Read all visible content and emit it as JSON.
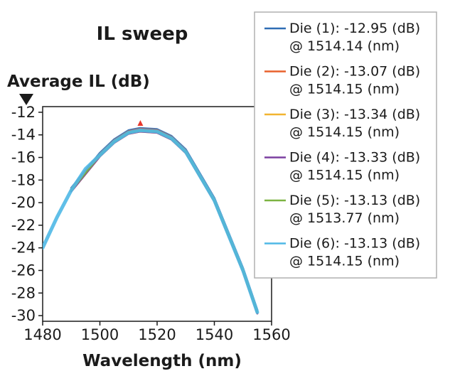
{
  "chart_data": {
    "type": "line",
    "title": "IL sweep",
    "xlabel": "Wavelength (nm)",
    "ylabel": "Average IL (dB)",
    "xlim": [
      1480,
      1560
    ],
    "ylim": [
      -30.5,
      -11.5
    ],
    "x_ticks": [
      1480,
      1500,
      1520,
      1540,
      1560
    ],
    "y_ticks": [
      -12,
      -14,
      -16,
      -18,
      -20,
      -22,
      -24,
      -26,
      -28,
      -30
    ],
    "grid": false,
    "legend_position": "right",
    "series": [
      {
        "name": "Die (1): -12.95 (dB)",
        "name2": "@ 1514.14 (nm)",
        "color": "#2e6db4",
        "x": [
          1490,
          1500,
          1505,
          1510,
          1514,
          1520,
          1525,
          1530,
          1540,
          1550,
          1555
        ],
        "y": [
          -18.7,
          -15.6,
          -14.4,
          -13.6,
          -13.4,
          -13.5,
          -14.1,
          -15.3,
          -19.6,
          -25.8,
          -29.5
        ]
      },
      {
        "name": "Die (2): -13.07 (dB)",
        "name2": "@ 1514.15 (nm)",
        "color": "#e8612c",
        "x": [
          1490,
          1500,
          1505,
          1510,
          1514,
          1520,
          1525,
          1530,
          1540,
          1550,
          1555
        ],
        "y": [
          -18.8,
          -15.7,
          -14.5,
          -13.7,
          -13.5,
          -13.6,
          -14.2,
          -15.4,
          -19.7,
          -25.9,
          -29.6
        ]
      },
      {
        "name": "Die (3): -13.34 (dB)",
        "name2": "@ 1514.15 (nm)",
        "color": "#f2b430",
        "x": [
          1490,
          1500,
          1505,
          1510,
          1514,
          1520,
          1525,
          1530,
          1540,
          1550,
          1555
        ],
        "y": [
          -19.0,
          -15.9,
          -14.7,
          -13.9,
          -13.7,
          -13.8,
          -14.4,
          -15.6,
          -19.9,
          -26.1,
          -29.8
        ]
      },
      {
        "name": "Die (4): -13.33 (dB)",
        "name2": "@ 1514.15 (nm)",
        "color": "#7b3fa0",
        "x": [
          1490,
          1500,
          1505,
          1510,
          1514,
          1520,
          1525,
          1530,
          1540,
          1550,
          1555
        ],
        "y": [
          -19.0,
          -15.9,
          -14.7,
          -13.9,
          -13.7,
          -13.8,
          -14.4,
          -15.6,
          -19.9,
          -26.1,
          -29.8
        ]
      },
      {
        "name": "Die (5): -13.13 (dB)",
        "name2": "@ 1513.77 (nm)",
        "color": "#7cb342",
        "x": [
          1490,
          1500,
          1505,
          1510,
          1514,
          1520,
          1525,
          1530,
          1540,
          1550,
          1555
        ],
        "y": [
          -18.9,
          -15.8,
          -14.6,
          -13.8,
          -13.6,
          -13.7,
          -14.3,
          -15.5,
          -19.8,
          -26.0,
          -29.7
        ]
      },
      {
        "name": "Die (6): -13.13 (dB)",
        "name2": "@ 1514.15 (nm)",
        "color": "#4fb8e6",
        "x": [
          1480,
          1485,
          1490,
          1495,
          1500,
          1505,
          1510,
          1514,
          1520,
          1525,
          1530,
          1540,
          1550,
          1555
        ],
        "y": [
          -24.0,
          -21.3,
          -18.9,
          -17.0,
          -15.8,
          -14.6,
          -13.8,
          -13.6,
          -13.7,
          -14.3,
          -15.5,
          -19.8,
          -26.0,
          -29.7
        ]
      }
    ],
    "annotations": [
      {
        "type": "peak-marker",
        "x": 1514.14,
        "y": -12.95,
        "color": "#e8372c"
      }
    ]
  }
}
